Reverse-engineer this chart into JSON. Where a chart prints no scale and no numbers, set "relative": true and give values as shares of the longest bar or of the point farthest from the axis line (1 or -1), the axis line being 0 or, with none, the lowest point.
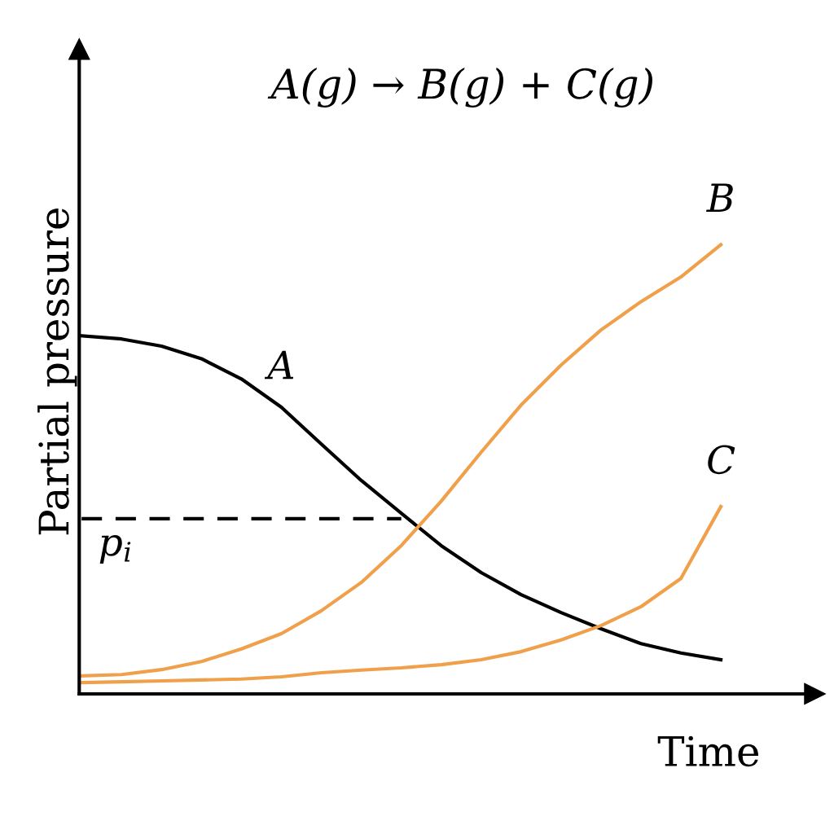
{
  "chart_data": {
    "type": "line",
    "title": "A(g) → B(g) + C(g)",
    "xlabel": "Time",
    "ylabel": "Partial pressure",
    "relative": true,
    "legend": false,
    "marker": "none",
    "categories": [
      null,
      null,
      null,
      null,
      null,
      null,
      null,
      null,
      null,
      null,
      null,
      null,
      null,
      null,
      null,
      null,
      null
    ],
    "series": [
      {
        "name": "A",
        "color": "#000000",
        "values": [
          0.797,
          0.79,
          0.774,
          0.746,
          0.701,
          0.638,
          0.556,
          0.475,
          0.402,
          0.33,
          0.27,
          0.221,
          0.181,
          0.145,
          0.112,
          0.091,
          0.076
        ]
      },
      {
        "name": "B",
        "color": "#f0a04b",
        "values": [
          0.04,
          0.043,
          0.054,
          0.072,
          0.1,
          0.134,
          0.185,
          0.248,
          0.33,
          0.429,
          0.538,
          0.643,
          0.732,
          0.81,
          0.873,
          0.928,
          1.0
        ]
      },
      {
        "name": "C",
        "color": "#f0a04b",
        "values": [
          0.025,
          0.027,
          0.029,
          0.031,
          0.033,
          0.038,
          0.047,
          0.053,
          0.058,
          0.065,
          0.076,
          0.094,
          0.12,
          0.152,
          0.194,
          0.257,
          0.417
        ]
      },
      {
        "name": "p$_{i}$",
        "color": "#000000",
        "line_style": "dashed",
        "values": [
          0.39,
          0.39,
          0.39,
          0.39,
          0.39,
          0.39,
          0.39,
          0.39,
          0.39,
          null,
          null,
          null,
          null,
          null,
          null,
          null,
          null
        ]
      }
    ]
  }
}
